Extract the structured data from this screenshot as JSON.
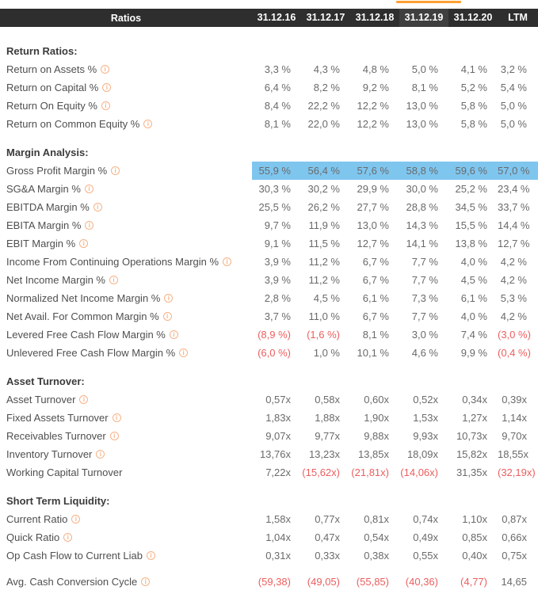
{
  "colors": {
    "header_bg": "#2E2E2E",
    "header_highlight_bg": "#3F3F3F",
    "header_text": "#FFFFFF",
    "accent_orange": "#FFA033",
    "row_highlight_blue": "#7FC6EF",
    "negative_red": "#EB5E5E",
    "label_text": "#4F4F4F",
    "value_text": "#6A6A6A"
  },
  "header": {
    "label": "Ratios",
    "columns": [
      {
        "label": "31.12.16",
        "selected": false
      },
      {
        "label": "31.12.17",
        "selected": false
      },
      {
        "label": "31.12.18",
        "selected": false
      },
      {
        "label": "31.12.19",
        "selected": true
      },
      {
        "label": "31.12.20",
        "selected": false
      },
      {
        "label": "LTM",
        "selected": false
      }
    ]
  },
  "info_icon_glyph": "i",
  "sections": [
    {
      "title": "Return Ratios:",
      "rows": [
        {
          "label": "Return on Assets %",
          "info": true,
          "values": [
            "3,3 %",
            "4,3 %",
            "4,8 %",
            "5,0 %",
            "4,1 %",
            "3,2 %"
          ]
        },
        {
          "label": "Return on Capital %",
          "info": true,
          "values": [
            "6,4 %",
            "8,2 %",
            "9,2 %",
            "8,1 %",
            "5,2 %",
            "5,4 %"
          ]
        },
        {
          "label": "Return On Equity %",
          "info": true,
          "values": [
            "8,4 %",
            "22,2 %",
            "12,2 %",
            "13,0 %",
            "5,8 %",
            "5,0 %"
          ]
        },
        {
          "label": "Return on Common Equity %",
          "info": true,
          "values": [
            "8,1 %",
            "22,0 %",
            "12,2 %",
            "13,0 %",
            "5,8 %",
            "5,0 %"
          ]
        }
      ]
    },
    {
      "title": "Margin Analysis:",
      "rows": [
        {
          "label": "Gross Profit Margin %",
          "info": true,
          "highlight": true,
          "values": [
            "55,9 %",
            "56,4 %",
            "57,6 %",
            "58,8 %",
            "59,6 %",
            "57,0 %"
          ]
        },
        {
          "label": "SG&A Margin %",
          "info": true,
          "values": [
            "30,3 %",
            "30,2 %",
            "29,9 %",
            "30,0 %",
            "25,2 %",
            "23,4 %"
          ]
        },
        {
          "label": "EBITDA Margin %",
          "info": true,
          "values": [
            "25,5 %",
            "26,2 %",
            "27,7 %",
            "28,8 %",
            "34,5 %",
            "33,7 %"
          ]
        },
        {
          "label": "EBITA Margin %",
          "info": true,
          "values": [
            "9,7 %",
            "11,9 %",
            "13,0 %",
            "14,3 %",
            "15,5 %",
            "14,4 %"
          ]
        },
        {
          "label": "EBIT Margin %",
          "info": true,
          "values": [
            "9,1 %",
            "11,5 %",
            "12,7 %",
            "14,1 %",
            "13,8 %",
            "12,7 %"
          ]
        },
        {
          "label": "Income From Continuing Operations Margin %",
          "info": true,
          "values": [
            "3,9 %",
            "11,2 %",
            "6,7 %",
            "7,7 %",
            "4,0 %",
            "4,2 %"
          ]
        },
        {
          "label": "Net Income Margin %",
          "info": true,
          "values": [
            "3,9 %",
            "11,2 %",
            "6,7 %",
            "7,7 %",
            "4,5 %",
            "4,2 %"
          ]
        },
        {
          "label": "Normalized Net Income Margin %",
          "info": true,
          "values": [
            "2,8 %",
            "4,5 %",
            "6,1 %",
            "7,3 %",
            "6,1 %",
            "5,3 %"
          ]
        },
        {
          "label": "Net Avail. For Common Margin %",
          "info": true,
          "values": [
            "3,7 %",
            "11,0 %",
            "6,7 %",
            "7,7 %",
            "4,0 %",
            "4,2 %"
          ]
        },
        {
          "label": "Levered Free Cash Flow Margin %",
          "info": true,
          "values": [
            "(8,9 %)",
            "(1,6 %)",
            "8,1 %",
            "3,0 %",
            "7,4 %",
            "(3,0 %)"
          ]
        },
        {
          "label": "Unlevered Free Cash Flow Margin %",
          "info": true,
          "values": [
            "(6,0 %)",
            "1,0 %",
            "10,1 %",
            "4,6 %",
            "9,9 %",
            "(0,4 %)"
          ]
        }
      ]
    },
    {
      "title": "Asset Turnover:",
      "rows": [
        {
          "label": "Asset Turnover",
          "info": true,
          "values": [
            "0,57x",
            "0,58x",
            "0,60x",
            "0,52x",
            "0,34x",
            "0,39x"
          ]
        },
        {
          "label": "Fixed Assets Turnover",
          "info": true,
          "values": [
            "1,83x",
            "1,88x",
            "1,90x",
            "1,53x",
            "1,27x",
            "1,14x"
          ]
        },
        {
          "label": "Receivables Turnover",
          "info": true,
          "values": [
            "9,07x",
            "9,77x",
            "9,88x",
            "9,93x",
            "10,73x",
            "9,70x"
          ]
        },
        {
          "label": "Inventory Turnover",
          "info": true,
          "values": [
            "13,76x",
            "13,23x",
            "13,85x",
            "18,09x",
            "15,82x",
            "18,55x"
          ]
        },
        {
          "label": "Working Capital Turnover",
          "info": false,
          "values": [
            "7,22x",
            "(15,62x)",
            "(21,81x)",
            "(14,06x)",
            "31,35x",
            "(32,19x)"
          ]
        }
      ]
    },
    {
      "title": "Short Term Liquidity:",
      "rows": [
        {
          "label": "Current Ratio",
          "info": true,
          "values": [
            "1,58x",
            "0,77x",
            "0,81x",
            "0,74x",
            "1,10x",
            "0,87x"
          ]
        },
        {
          "label": "Quick Ratio",
          "info": true,
          "values": [
            "1,04x",
            "0,47x",
            "0,54x",
            "0,49x",
            "0,85x",
            "0,66x"
          ]
        },
        {
          "label": "Op Cash Flow to Current Liab",
          "info": true,
          "values": [
            "0,31x",
            "0,33x",
            "0,38x",
            "0,55x",
            "0,40x",
            "0,75x"
          ]
        },
        {
          "label": "Avg. Cash Conversion Cycle",
          "info": true,
          "spacer_before": true,
          "values": [
            "(59,38)",
            "(49,05)",
            "(55,85)",
            "(40,36)",
            "(4,77)",
            "14,65"
          ]
        }
      ]
    }
  ]
}
